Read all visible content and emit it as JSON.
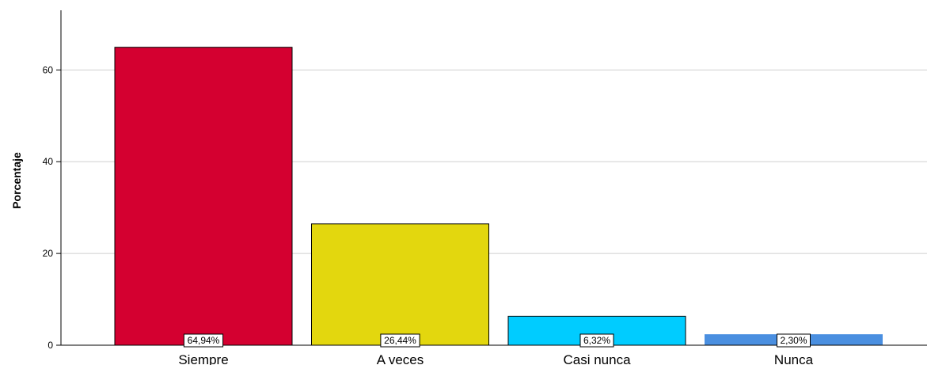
{
  "chart_data": {
    "type": "bar",
    "title": "",
    "xlabel": "",
    "ylabel": "Porcentaje",
    "categories": [
      "Siempre",
      "A veces",
      "Casi nunca",
      "Nunca"
    ],
    "values": [
      64.94,
      26.44,
      6.32,
      2.3
    ],
    "value_labels": [
      "64,94%",
      "26,44%",
      "6,32%",
      "2,30%"
    ],
    "colors": [
      "#d40030",
      "#e3d70e",
      "#00ccff",
      "#4a8fe0"
    ],
    "ylim": [
      0,
      73
    ],
    "yticks": [
      0,
      20,
      40,
      60
    ],
    "grid": true,
    "legend": "none"
  }
}
